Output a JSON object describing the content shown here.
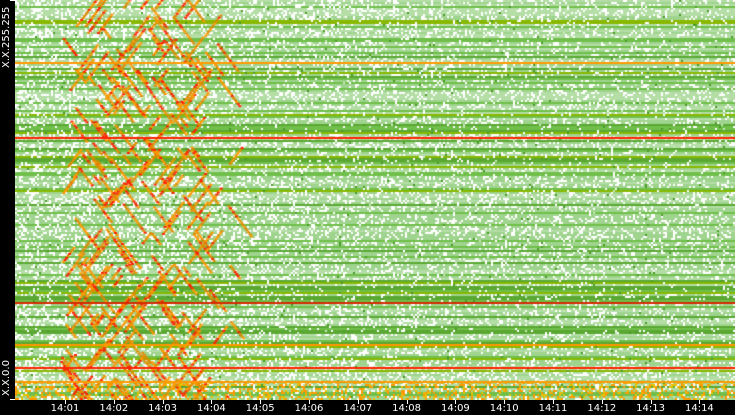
{
  "chart_data": {
    "type": "heatmap",
    "title": "",
    "xlabel": "",
    "ylabel": "",
    "x_ticks": [
      "14:01",
      "14:02",
      "14:03",
      "14:04",
      "14:05",
      "14:06",
      "14:07",
      "14:08",
      "14:09",
      "14:10",
      "14:11",
      "14:12",
      "14:13",
      "14:14"
    ],
    "y_ticks": [
      "X.X.0.0",
      "X.X.255.255"
    ],
    "colors": {
      "background": "#000000",
      "low": "#ffffff",
      "light": "#a8d89a",
      "mid": "#6fbf4a",
      "high": "#88b800",
      "hot": "#ff9900",
      "max": "#ff2200"
    },
    "legend": "none",
    "grid": false
  }
}
